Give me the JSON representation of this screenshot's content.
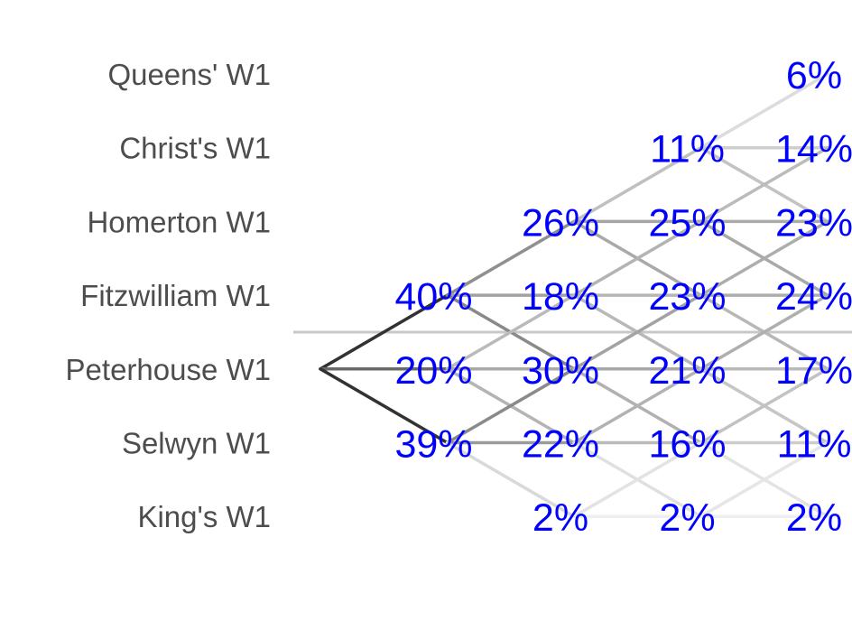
{
  "chart_data": {
    "type": "line",
    "title": "",
    "xlabel": "",
    "ylabel": "",
    "crews": [
      "Queens' W1",
      "Christ's W1",
      "Homerton W1",
      "Fitzwilliam W1",
      "Peterhouse W1",
      "Selwyn W1",
      "King's W1"
    ],
    "focus_crew": "Peterhouse W1",
    "start_position": 5,
    "divider_after_position": 4,
    "days": [
      1,
      2,
      3,
      4
    ],
    "probabilities": [
      {
        "day": 1,
        "values": [
          {
            "position": 4,
            "label": "40%",
            "p": 40
          },
          {
            "position": 5,
            "label": "20%",
            "p": 20
          },
          {
            "position": 6,
            "label": "39%",
            "p": 39
          }
        ]
      },
      {
        "day": 2,
        "values": [
          {
            "position": 3,
            "label": "26%",
            "p": 26
          },
          {
            "position": 4,
            "label": "18%",
            "p": 18
          },
          {
            "position": 5,
            "label": "30%",
            "p": 30
          },
          {
            "position": 6,
            "label": "22%",
            "p": 22
          },
          {
            "position": 7,
            "label": "2%",
            "p": 2
          }
        ]
      },
      {
        "day": 3,
        "values": [
          {
            "position": 2,
            "label": "11%",
            "p": 11
          },
          {
            "position": 3,
            "label": "25%",
            "p": 25
          },
          {
            "position": 4,
            "label": "23%",
            "p": 23
          },
          {
            "position": 5,
            "label": "21%",
            "p": 21
          },
          {
            "position": 6,
            "label": "16%",
            "p": 16
          },
          {
            "position": 7,
            "label": "2%",
            "p": 2
          }
        ]
      },
      {
        "day": 4,
        "values": [
          {
            "position": 1,
            "label": "6%",
            "p": 6
          },
          {
            "position": 2,
            "label": "14%",
            "p": 14
          },
          {
            "position": 3,
            "label": "23%",
            "p": 23
          },
          {
            "position": 4,
            "label": "24%",
            "p": 24
          },
          {
            "position": 5,
            "label": "17%",
            "p": 17
          },
          {
            "position": 6,
            "label": "11%",
            "p": 11
          },
          {
            "position": 7,
            "label": "2%",
            "p": 2
          }
        ]
      }
    ],
    "colors": {
      "label_text": "#4d4d4d",
      "percent_text": "#0000ff",
      "divider": "#c8c8c8",
      "path_dark": "#333333"
    }
  }
}
